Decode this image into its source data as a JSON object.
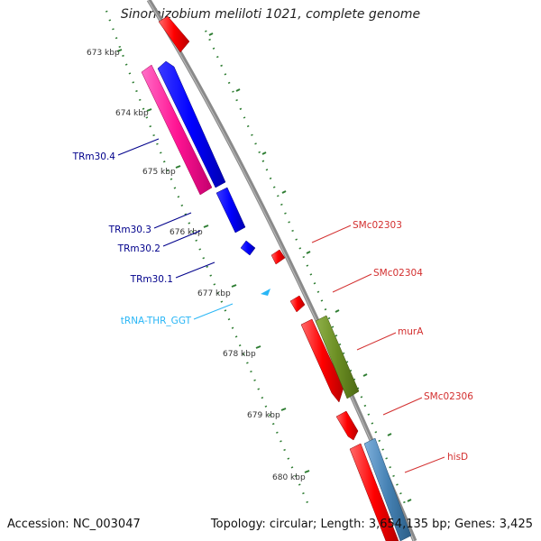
{
  "title": "Sinorhizobium meliloti 1021, complete genome",
  "footer": {
    "accession": "Accession: NC_003047",
    "summary": "Topology: circular; Length: 3,654,135 bp; Genes: 3,425"
  },
  "ruler": [
    "673 kbp",
    "674 kbp",
    "675 kbp",
    "676 kbp",
    "677 kbp",
    "678 kbp",
    "679 kbp",
    "680 kbp"
  ],
  "features": {
    "left": [
      {
        "label": "TRm30.4",
        "color": "#00008b"
      },
      {
        "label": "TRm30.3",
        "color": "#00008b"
      },
      {
        "label": "TRm30.2",
        "color": "#00008b"
      },
      {
        "label": "TRm30.1",
        "color": "#00008b"
      },
      {
        "label": "tRNA-THR_GGT",
        "color": "#29b6f6"
      }
    ],
    "right": [
      {
        "label": "SMc02303",
        "color": "#d32f2f"
      },
      {
        "label": "SMc02304",
        "color": "#d32f2f"
      },
      {
        "label": "murA",
        "color": "#d32f2f"
      },
      {
        "label": "SMc02306",
        "color": "#d32f2f"
      },
      {
        "label": "hisD",
        "color": "#d32f2f"
      }
    ]
  },
  "colors": {
    "backbone": "#8a8a8a",
    "ticks": "#2e7d32",
    "gene_red": "#ff0000",
    "gene_blue": "#0000ff",
    "gene_pink": "#ff1493",
    "gene_olive": "#6b8e23",
    "gene_steel": "#4682b4",
    "trna": "#29b6f6"
  }
}
